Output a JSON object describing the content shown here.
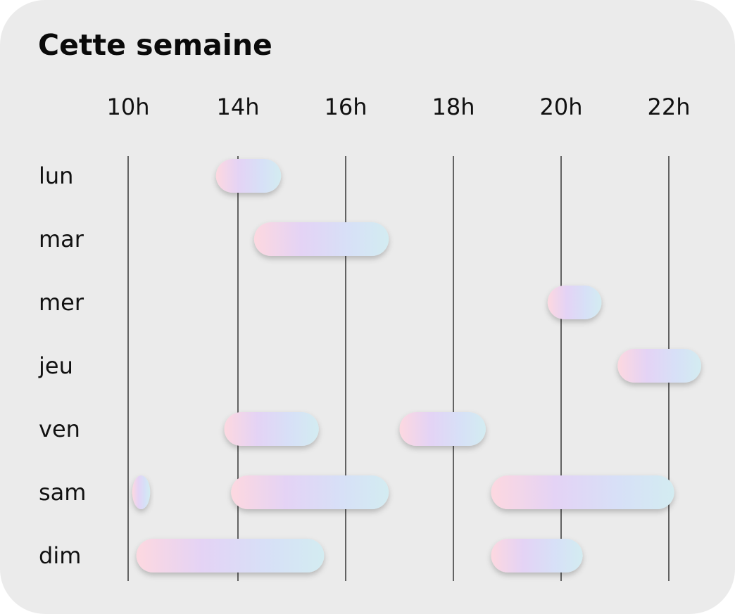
{
  "chart_data": {
    "type": "gantt",
    "title": "Cette semaine",
    "x_ticks": [
      {
        "hour": 10,
        "label": "10h"
      },
      {
        "hour": 14,
        "label": "14h"
      },
      {
        "hour": 16,
        "label": "16h"
      },
      {
        "hour": 18,
        "label": "18h"
      },
      {
        "hour": 20,
        "label": "20h"
      },
      {
        "hour": 22,
        "label": "22h"
      }
    ],
    "xlim": [
      9.6,
      22.6
    ],
    "grid": true,
    "days": [
      {
        "label": "lun",
        "blocks": [
          [
            13.2,
            14.8
          ]
        ]
      },
      {
        "label": "mar",
        "blocks": [
          [
            14.3,
            16.8
          ]
        ]
      },
      {
        "label": "mer",
        "blocks": [
          [
            19.75,
            20.75
          ]
        ]
      },
      {
        "label": "jeu",
        "blocks": [
          [
            21.05,
            22.6
          ]
        ]
      },
      {
        "label": "ven",
        "blocks": [
          [
            13.5,
            15.5
          ],
          [
            17.0,
            18.6
          ]
        ]
      },
      {
        "label": "sam",
        "blocks": [
          [
            10.15,
            10.8
          ],
          [
            13.75,
            16.8
          ],
          [
            18.7,
            22.1
          ]
        ]
      },
      {
        "label": "dim",
        "blocks": [
          [
            10.3,
            15.6
          ],
          [
            18.7,
            20.4
          ]
        ]
      }
    ],
    "bar_gradient": [
      "#fdd8e0",
      "#e4d3f5",
      "#d7e0f7",
      "#d3ecf1"
    ]
  }
}
